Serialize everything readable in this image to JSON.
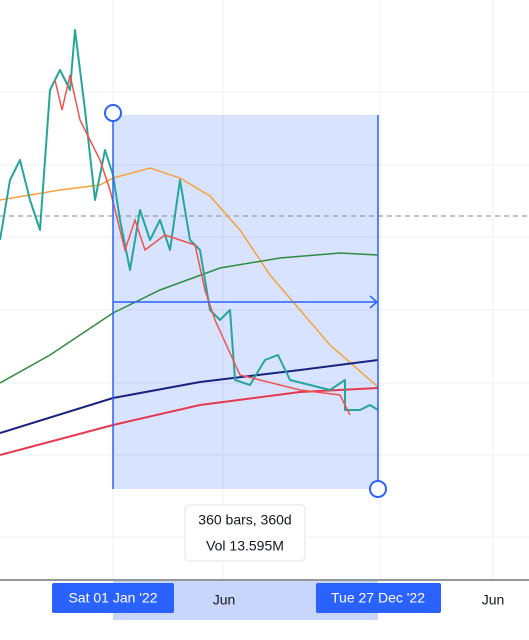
{
  "x_axis": {
    "labels": [
      "Jun",
      "Jun"
    ],
    "range_start": "Sat 01 Jan '22",
    "range_end": "Tue 27 Dec '22"
  },
  "tooltip": {
    "lines": [
      "360 bars, 360d",
      "Vol 13.595M"
    ]
  }
}
